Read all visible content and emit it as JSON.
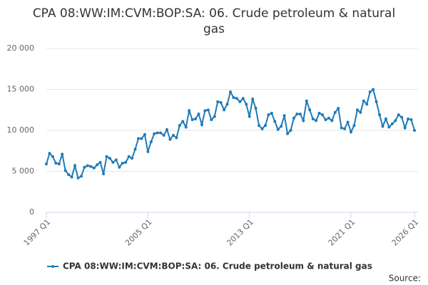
{
  "chart_data": {
    "type": "line",
    "title": "CPA 08:WW:IM:CVM:BOP:SA: 06. Crude petroleum & natural gas",
    "source": "Source:",
    "categories": [
      "1997 Q1",
      null,
      null,
      null,
      null,
      null,
      null,
      null,
      null,
      null,
      null,
      null,
      null,
      null,
      null,
      null,
      null,
      null,
      null,
      null,
      null,
      null,
      null,
      null,
      null,
      null,
      null,
      null,
      null,
      null,
      null,
      null,
      "2005 Q1",
      null,
      null,
      null,
      null,
      null,
      null,
      null,
      null,
      null,
      null,
      null,
      null,
      null,
      null,
      null,
      null,
      null,
      null,
      null,
      null,
      null,
      null,
      null,
      null,
      null,
      null,
      null,
      null,
      null,
      null,
      null,
      "2013 Q1",
      null,
      null,
      null,
      null,
      null,
      null,
      null,
      null,
      null,
      null,
      null,
      null,
      null,
      null,
      null,
      null,
      null,
      null,
      null,
      null,
      null,
      null,
      null,
      null,
      null,
      null,
      null,
      null,
      null,
      null,
      null,
      "2021 Q1",
      null,
      null,
      null,
      null,
      null,
      null,
      null,
      null,
      null,
      null,
      null,
      null,
      null,
      null,
      null,
      null,
      null,
      null,
      null,
      "2026 Q1"
    ],
    "series": [
      {
        "name": "CPA 08:WW:IM:CVM:BOP:SA: 06. Crude petroleum & natural gas",
        "color": "#1f7ab8",
        "values": [
          5900,
          7200,
          6800,
          6000,
          5900,
          7100,
          5100,
          4600,
          4300,
          5700,
          4200,
          4400,
          5500,
          5700,
          5600,
          5400,
          5800,
          6100,
          4700,
          6800,
          6600,
          6100,
          6400,
          5500,
          6000,
          6100,
          6800,
          6600,
          7700,
          9000,
          9000,
          9500,
          7400,
          8600,
          9600,
          9700,
          9700,
          9400,
          10100,
          8900,
          9400,
          9100,
          10600,
          11100,
          10400,
          12400,
          11300,
          11400,
          12000,
          10700,
          12400,
          12500,
          11300,
          11700,
          13500,
          13400,
          12500,
          13200,
          14700,
          14000,
          13900,
          13500,
          13900,
          13200,
          11700,
          13800,
          12700,
          10600,
          10200,
          10600,
          11900,
          12100,
          11100,
          10100,
          10500,
          11800,
          9600,
          10000,
          11500,
          12000,
          12000,
          11200,
          13600,
          12500,
          11400,
          11200,
          12100,
          11900,
          11300,
          11500,
          11200,
          12200,
          12700,
          10300,
          10200,
          11000,
          9800,
          10600,
          12500,
          12200,
          13600,
          13200,
          14700,
          15000,
          13500,
          11900,
          10500,
          11400,
          10400,
          10800,
          11200,
          11900,
          11600,
          10300,
          11400,
          11300,
          10000
        ]
      }
    ],
    "ylim": [
      0,
      20000
    ],
    "yticks": [
      0,
      {
        "value": 5000,
        "label": "5 000"
      },
      {
        "value": 10000,
        "label": "10 000"
      },
      {
        "value": 15000,
        "label": "15 000"
      },
      {
        "value": 20000,
        "label": "20 000"
      }
    ],
    "grid": true
  }
}
